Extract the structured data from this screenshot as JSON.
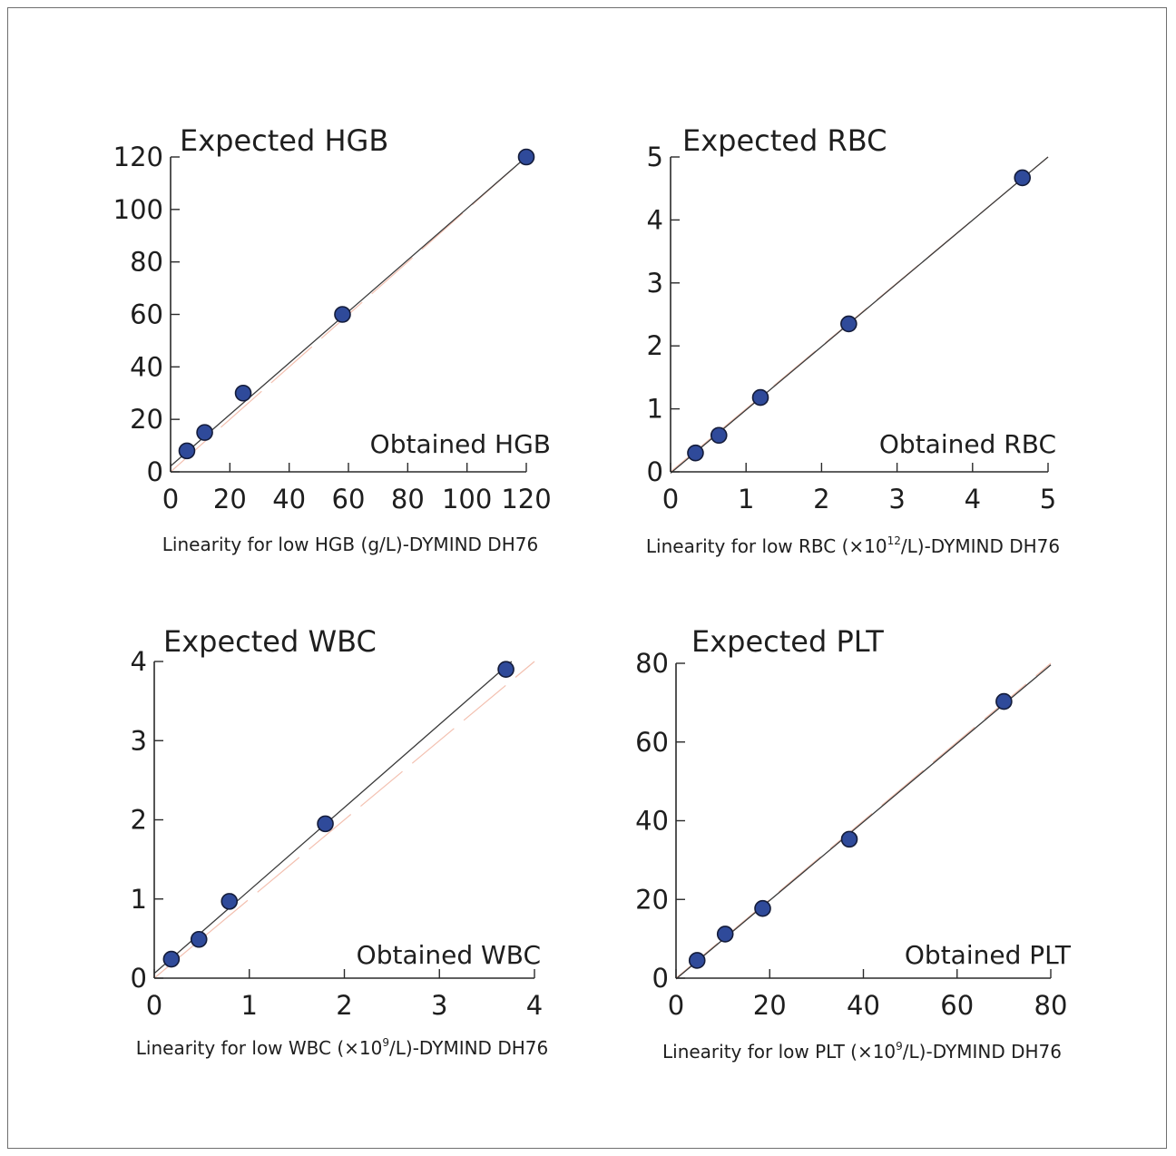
{
  "chart_data": [
    {
      "type": "scatter",
      "ylabel": "Expected HGB",
      "xlabel": "Obtained HGB",
      "caption": "Linearity for low HGB (g/L)-DYMIND DH76",
      "xlim": [
        0,
        120
      ],
      "ylim": [
        0,
        120
      ],
      "xticks": [
        0,
        20,
        40,
        60,
        80,
        100,
        120
      ],
      "yticks": [
        0,
        20,
        40,
        60,
        80,
        100,
        120
      ],
      "x": [
        5.5,
        11.5,
        24.5,
        58,
        120
      ],
      "y": [
        8,
        15,
        30,
        60,
        120
      ],
      "fit_line": [
        [
          0,
          2.2
        ],
        [
          120,
          120
        ]
      ],
      "ref_line": [
        [
          0,
          0
        ],
        [
          120,
          120
        ]
      ],
      "grid": false
    },
    {
      "type": "scatter",
      "ylabel": "Expected RBC",
      "xlabel": "Obtained RBC",
      "caption": "Linearity for low RBC (×10¹²/L)-DYMIND DH76",
      "xlim": [
        0,
        5
      ],
      "ylim": [
        0,
        5
      ],
      "xticks": [
        0,
        1,
        2,
        3,
        4,
        5
      ],
      "yticks": [
        0,
        1,
        2,
        3,
        4,
        5
      ],
      "x": [
        0.33,
        0.64,
        1.19,
        2.36,
        4.66
      ],
      "y": [
        0.3,
        0.58,
        1.18,
        2.35,
        4.67
      ],
      "fit_line": [
        [
          0,
          -0.02
        ],
        [
          5,
          5
        ]
      ],
      "ref_line": [
        [
          0,
          0
        ],
        [
          5,
          5
        ]
      ],
      "grid": false
    },
    {
      "type": "scatter",
      "ylabel": "Expected WBC",
      "xlabel": "Obtained WBC",
      "caption": "Linearity for low WBC (×10⁹/L)-DYMIND DH76",
      "xlim": [
        0,
        4
      ],
      "ylim": [
        0,
        4
      ],
      "xticks": [
        0,
        1,
        2,
        3,
        4
      ],
      "yticks": [
        0,
        1,
        2,
        3,
        4
      ],
      "x": [
        0.18,
        0.47,
        0.79,
        1.8,
        3.7
      ],
      "y": [
        0.24,
        0.49,
        0.97,
        1.95,
        3.9
      ],
      "fit_line": [
        [
          0,
          0.06
        ],
        [
          3.76,
          4
        ]
      ],
      "ref_line": [
        [
          0,
          0
        ],
        [
          4,
          4
        ]
      ],
      "grid": false
    },
    {
      "type": "scatter",
      "ylabel": "Expected PLT",
      "xlabel": "Obtained PLT",
      "caption": "Linearity for low PLT (×10⁹/L)-DYMIND DH76",
      "xlim": [
        0,
        80
      ],
      "ylim": [
        0,
        80
      ],
      "xticks": [
        0,
        20,
        40,
        60,
        80
      ],
      "yticks": [
        0,
        20,
        40,
        60,
        80
      ],
      "x": [
        4.5,
        10.5,
        18.5,
        37,
        70
      ],
      "y": [
        4.5,
        11.2,
        17.7,
        35.3,
        70.3
      ],
      "fit_line": [
        [
          0,
          -0.2
        ],
        [
          80,
          79.6
        ]
      ],
      "ref_line": [
        [
          0,
          0
        ],
        [
          80,
          80
        ]
      ],
      "grid": false
    }
  ],
  "colors": {
    "marker_fill": "#2f4a9a",
    "marker_stroke": "#141c3a",
    "fit_line": "#3a3a3a",
    "ref_line": "#f3c0b0",
    "axis": "#2a2a2a",
    "frame": "#6f6f6f"
  }
}
